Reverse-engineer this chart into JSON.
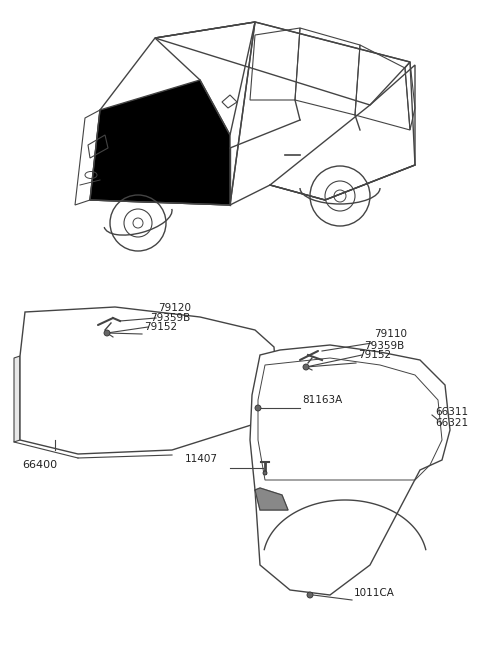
{
  "bg_color": "#ffffff",
  "line_color": "#444444",
  "text_color": "#222222",
  "fig_width": 4.8,
  "fig_height": 6.55,
  "dpi": 100,
  "hood_label": "66400",
  "fender_label1": "66311",
  "fender_label2": "66321",
  "left_hinge": [
    "79120",
    "79359B",
    "79152"
  ],
  "right_hinge": [
    "79110",
    "79359B",
    "79152"
  ],
  "bolt1": "81163A",
  "bolt2": "11407",
  "bolt3": "1011CA"
}
